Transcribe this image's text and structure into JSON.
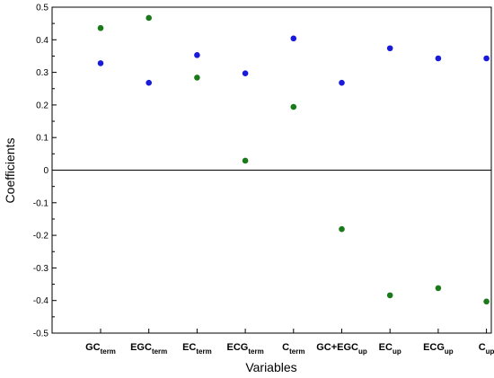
{
  "chart_data": {
    "type": "scatter",
    "xlabel": "Variables",
    "ylabel": "Coefficients",
    "ylim": [
      -0.5,
      0.5
    ],
    "yticks": [
      -0.5,
      -0.4,
      -0.3,
      -0.2,
      -0.1,
      0,
      0.1,
      0.2,
      0.3,
      0.4,
      0.5
    ],
    "ytick_labels": [
      "-0.5",
      "-0.4",
      "-0.3",
      "-0.2",
      "-0.1",
      "0",
      "0.1",
      "0.2",
      "0.3",
      "0.4",
      "0.5"
    ],
    "grid": false,
    "zero_line": true,
    "categories": [
      {
        "base": "GC",
        "sub": "term"
      },
      {
        "base": "EGC",
        "sub": "term"
      },
      {
        "base": "EC",
        "sub": "term"
      },
      {
        "base": "ECG",
        "sub": "term"
      },
      {
        "base": "C",
        "sub": "term"
      },
      {
        "base": "GC+EGC",
        "sub": "up"
      },
      {
        "base": "EC",
        "sub": "up"
      },
      {
        "base": "ECG",
        "sub": "up"
      },
      {
        "base": "C",
        "sub": "up"
      }
    ],
    "series": [
      {
        "color": "#1a1adb",
        "values": [
          0.328,
          0.268,
          0.353,
          0.297,
          0.404,
          0.268,
          0.374,
          0.343,
          0.343
        ]
      },
      {
        "color": "#1a7a1a",
        "values": [
          0.436,
          0.467,
          0.284,
          0.029,
          0.194,
          -0.181,
          -0.384,
          -0.362,
          -0.403
        ]
      }
    ]
  }
}
